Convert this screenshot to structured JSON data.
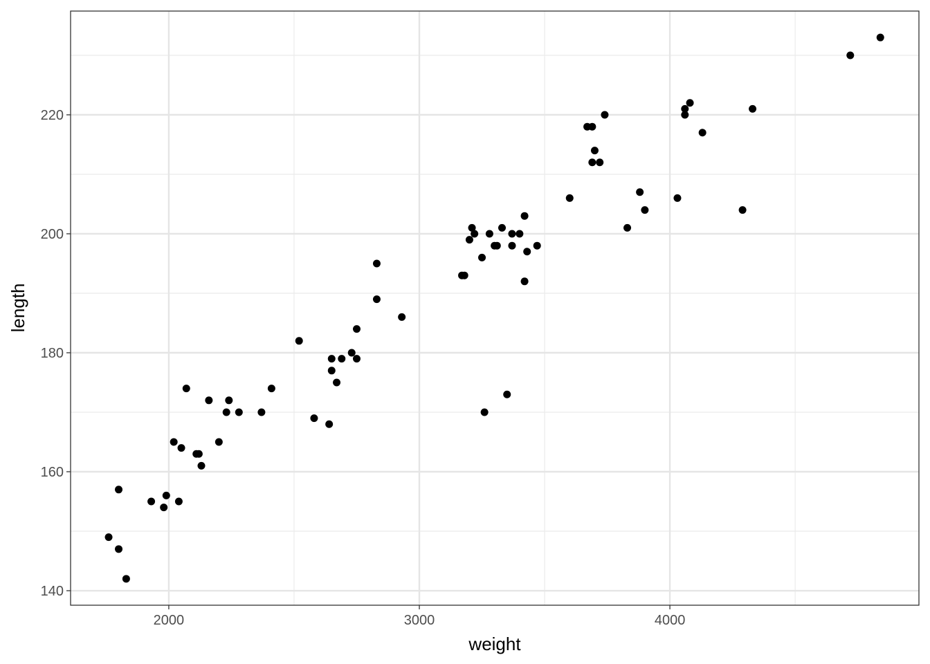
{
  "chart_data": {
    "type": "scatter",
    "x_label": "weight",
    "y_label": "length",
    "color": "#000000",
    "grid": true,
    "xlim": [
      1608,
      4994
    ],
    "ylim": [
      137.56,
      237.44
    ],
    "xticks": [
      2000,
      3000,
      4000
    ],
    "yticks": [
      140,
      160,
      180,
      200,
      220
    ],
    "x": [
      1760,
      1800,
      1800,
      1830,
      1930,
      1980,
      1990,
      2020,
      2040,
      2050,
      2070,
      2110,
      2120,
      2130,
      2160,
      2200,
      2230,
      2240,
      2280,
      2370,
      2410,
      2520,
      2580,
      2640,
      2650,
      2650,
      2670,
      2690,
      2730,
      2750,
      2750,
      2830,
      2830,
      2930,
      3170,
      3180,
      3200,
      3210,
      3220,
      3250,
      3260,
      3280,
      3300,
      3310,
      3330,
      3350,
      3370,
      3370,
      3400,
      3420,
      3420,
      3430,
      3470,
      3600,
      3670,
      3690,
      3690,
      3700,
      3720,
      3740,
      3830,
      3880,
      3900,
      4030,
      4060,
      4060,
      4080,
      4130,
      4290,
      4330,
      4720,
      4840
    ],
    "y": [
      149,
      157,
      147,
      142,
      155,
      154,
      156,
      165,
      155,
      164,
      174,
      163,
      163,
      161,
      172,
      165,
      170,
      172,
      170,
      170,
      174,
      182,
      169,
      168,
      179,
      177,
      175,
      179,
      180,
      179,
      184,
      189,
      195,
      186,
      193,
      193,
      199,
      201,
      200,
      196,
      170,
      200,
      198,
      198,
      201,
      173,
      200,
      198,
      200,
      203,
      192,
      197,
      198,
      206,
      218,
      218,
      212,
      214,
      212,
      220,
      201,
      207,
      204,
      206,
      221,
      220,
      222,
      217,
      204,
      221,
      230,
      233
    ]
  }
}
